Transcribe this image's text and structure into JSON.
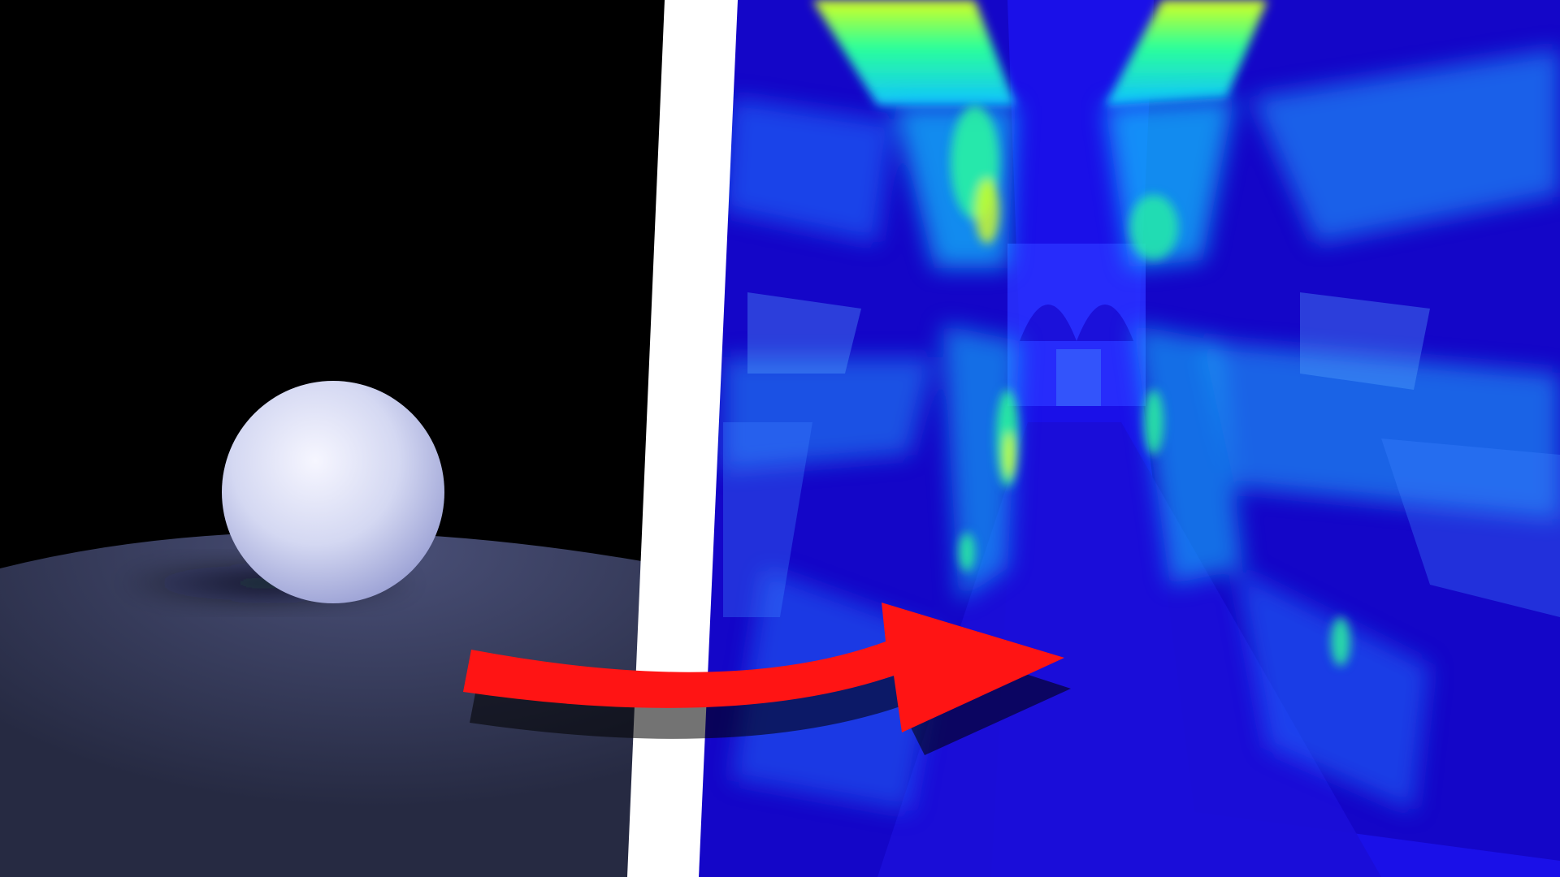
{
  "thumbnail": {
    "left_panel": {
      "subject": "white-sphere-on-ground-plane",
      "colors": {
        "sky": "#000000",
        "ground": "#262a42",
        "ground_lit": "#4a5078",
        "sphere_highlight": "#f6f6ff",
        "sphere_mid": "#d4d8f2",
        "sphere_shadow": "#9aa0d4"
      }
    },
    "divider": {
      "color": "#ffffff"
    },
    "right_panel": {
      "subject": "heatmap-render-of-corridor-scene",
      "colors": {
        "base": "#1a10e8",
        "deep": "#1406c8",
        "cool": "#1e6cff",
        "mid": "#12c4ff",
        "warm": "#2aff9a",
        "hot": "#d8ff1e"
      }
    },
    "arrow": {
      "icon": "curved-arrow-right-icon",
      "color": "#ff1414",
      "shadow_color": "#000000"
    }
  }
}
